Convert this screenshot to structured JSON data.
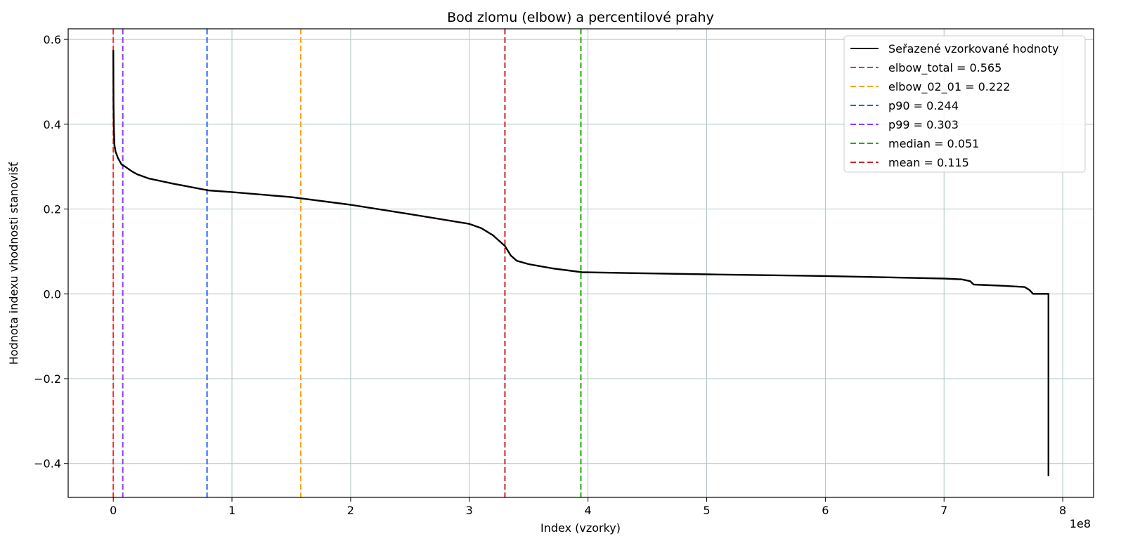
{
  "chart_data": {
    "type": "line",
    "title": "Bod zlomu (elbow) a percentilové prahy",
    "xlabel": "Index (vzorky)",
    "ylabel": "Hodnota indexu vhodnosti stanovišť",
    "x_offset_label": "1e8",
    "x_unit_multiplier": 100000000,
    "xlim": [
      -0.38,
      8.26
    ],
    "ylim": [
      -0.48,
      0.625
    ],
    "x_ticks": [
      0,
      1,
      2,
      3,
      4,
      5,
      6,
      7,
      8
    ],
    "x_tick_labels": [
      "0",
      "1",
      "2",
      "3",
      "4",
      "5",
      "6",
      "7",
      "8"
    ],
    "y_ticks": [
      -0.4,
      -0.2,
      0.0,
      0.2,
      0.4,
      0.6
    ],
    "y_tick_labels": [
      "−0.4",
      "−0.2",
      "0.0",
      "0.2",
      "0.4",
      "0.6"
    ],
    "grid": true,
    "legend_position": "top-right",
    "series": [
      {
        "name": "Seřazené vzorkované hodnoty",
        "color": "#000000",
        "style": "solid",
        "x": [
          0,
          0.002,
          0.005,
          0.01,
          0.02,
          0.04,
          0.07,
          0.1,
          0.15,
          0.2,
          0.3,
          0.5,
          0.8,
          1.0,
          1.5,
          2.0,
          2.5,
          3.0,
          3.1,
          3.2,
          3.3,
          3.35,
          3.4,
          3.5,
          3.7,
          3.95,
          5.0,
          6.0,
          7.0,
          7.15,
          7.22,
          7.25,
          7.5,
          7.68,
          7.72,
          7.75,
          7.85,
          7.88,
          7.88
        ],
        "y": [
          0.575,
          0.45,
          0.39,
          0.35,
          0.335,
          0.32,
          0.305,
          0.3,
          0.29,
          0.282,
          0.272,
          0.26,
          0.244,
          0.24,
          0.228,
          0.21,
          0.188,
          0.165,
          0.155,
          0.138,
          0.113,
          0.09,
          0.078,
          0.07,
          0.06,
          0.051,
          0.046,
          0.042,
          0.036,
          0.034,
          0.03,
          0.022,
          0.019,
          0.016,
          0.009,
          0.0,
          0.0,
          0.0,
          -0.43
        ]
      }
    ],
    "reference_lines": [
      {
        "name": "elbow_total = 0.565",
        "x": 0.0,
        "color": "#ff2a2a",
        "style": "dashed"
      },
      {
        "name": "elbow_02_01 = 0.222",
        "x": 1.58,
        "color": "#ffa31a",
        "style": "dashed"
      },
      {
        "name": "p90 = 0.244",
        "x": 0.79,
        "color": "#1f5fff",
        "style": "dashed"
      },
      {
        "name": "p99 = 0.303",
        "x": 0.08,
        "color": "#8a3dff",
        "style": "dashed"
      },
      {
        "name": "median = 0.051",
        "x": 3.94,
        "color": "#17b000",
        "style": "dashed"
      },
      {
        "name": "mean = 0.115",
        "x": 3.3,
        "color": "#c8252c",
        "style": "dashed"
      }
    ]
  }
}
